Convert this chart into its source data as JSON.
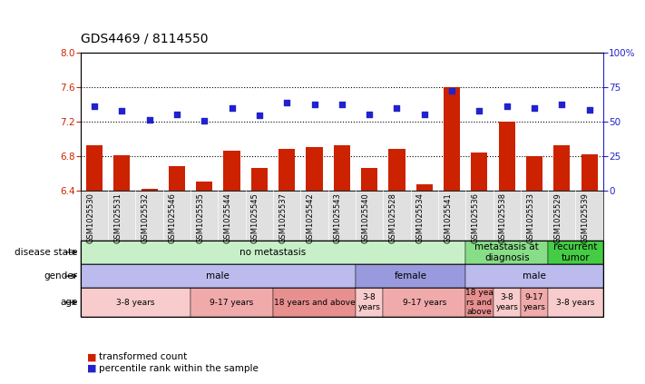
{
  "title": "GDS4469 / 8114550",
  "samples": [
    "GSM1025530",
    "GSM1025531",
    "GSM1025532",
    "GSM1025546",
    "GSM1025535",
    "GSM1025544",
    "GSM1025545",
    "GSM1025537",
    "GSM1025542",
    "GSM1025543",
    "GSM1025540",
    "GSM1025528",
    "GSM1025534",
    "GSM1025541",
    "GSM1025536",
    "GSM1025538",
    "GSM1025533",
    "GSM1025529",
    "GSM1025539"
  ],
  "bar_values": [
    6.92,
    6.81,
    6.42,
    6.68,
    6.5,
    6.86,
    6.66,
    6.88,
    6.9,
    6.92,
    6.66,
    6.88,
    6.47,
    7.6,
    6.84,
    7.2,
    6.8,
    6.92,
    6.82
  ],
  "dot_values": [
    7.38,
    7.32,
    7.22,
    7.28,
    7.21,
    7.35,
    7.27,
    7.42,
    7.4,
    7.4,
    7.28,
    7.35,
    7.28,
    7.55,
    7.32,
    7.38,
    7.35,
    7.4,
    7.33
  ],
  "ylim_left": [
    6.4,
    8.0
  ],
  "ylim_right": [
    0,
    100
  ],
  "yticks_left": [
    6.4,
    6.8,
    7.2,
    7.6,
    8.0
  ],
  "yticks_right": [
    0,
    25,
    50,
    75,
    100
  ],
  "bar_color": "#cc2200",
  "dot_color": "#2222cc",
  "bar_width": 0.6,
  "disease_state_groups": [
    {
      "label": "no metastasis",
      "start": 0,
      "end": 13,
      "color": "#c8f0c8"
    },
    {
      "label": "metastasis at\ndiagnosis",
      "start": 14,
      "end": 16,
      "color": "#88dd88"
    },
    {
      "label": "recurrent\ntumor",
      "start": 17,
      "end": 18,
      "color": "#44cc44"
    }
  ],
  "gender_groups": [
    {
      "label": "male",
      "start": 0,
      "end": 9,
      "color": "#bbbbee"
    },
    {
      "label": "female",
      "start": 10,
      "end": 13,
      "color": "#9999dd"
    },
    {
      "label": "male",
      "start": 14,
      "end": 18,
      "color": "#bbbbee"
    }
  ],
  "age_groups": [
    {
      "label": "3-8 years",
      "start": 0,
      "end": 3,
      "color": "#f8cccc"
    },
    {
      "label": "9-17 years",
      "start": 4,
      "end": 6,
      "color": "#f0aaaa"
    },
    {
      "label": "18 years and above",
      "start": 7,
      "end": 9,
      "color": "#e89090"
    },
    {
      "label": "3-8\nyears",
      "start": 10,
      "end": 10,
      "color": "#f8cccc"
    },
    {
      "label": "9-17 years",
      "start": 11,
      "end": 13,
      "color": "#f0aaaa"
    },
    {
      "label": "18 yea\nrs and\nabove",
      "start": 14,
      "end": 14,
      "color": "#e89090"
    },
    {
      "label": "3-8\nyears",
      "start": 15,
      "end": 15,
      "color": "#f8cccc"
    },
    {
      "label": "9-17\nyears",
      "start": 16,
      "end": 16,
      "color": "#f0aaaa"
    },
    {
      "label": "3-8 years",
      "start": 17,
      "end": 18,
      "color": "#f8cccc"
    }
  ],
  "legend_bar_color": "#cc2200",
  "legend_dot_color": "#2222cc",
  "legend_bar_label": "transformed count",
  "legend_dot_label": "percentile rank within the sample",
  "row_labels": [
    "disease state",
    "gender",
    "age"
  ],
  "bg_color": "#ffffff",
  "title_fontsize": 10,
  "tick_fontsize": 7.5,
  "label_fontsize": 7.5,
  "sample_label_fontsize": 6
}
